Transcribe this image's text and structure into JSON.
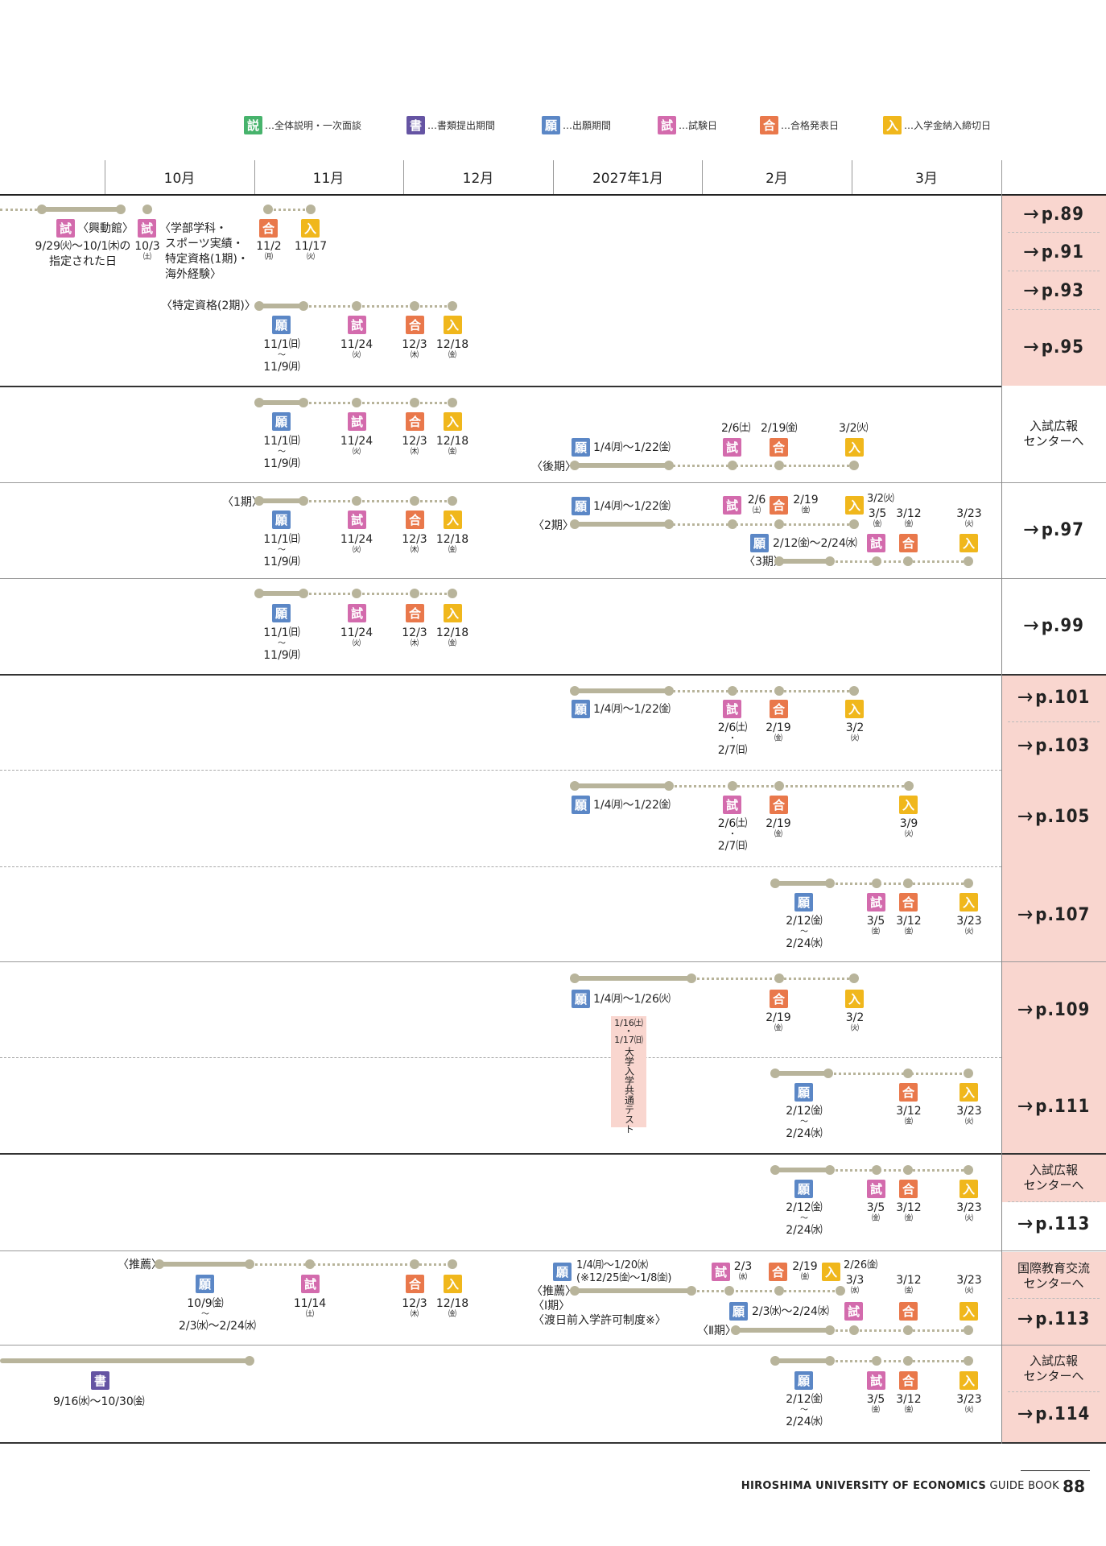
{
  "legend": [
    {
      "badge": "説",
      "text": "…全体説明・一次面談",
      "color": "#47b36c"
    },
    {
      "badge": "書",
      "text": "…書類提出期間",
      "color": "#6554a3"
    },
    {
      "badge": "願",
      "text": "…出願期間",
      "color": "#5b87c6"
    },
    {
      "badge": "試",
      "text": "…試験日",
      "color": "#d36bad"
    },
    {
      "badge": "合",
      "text": "…合格発表日",
      "color": "#e9784b"
    },
    {
      "badge": "入",
      "text": "…入学金納入締切日",
      "color": "#f0b71c"
    }
  ],
  "months": [
    "10月",
    "11月",
    "12月",
    "2027年1月",
    "2月",
    "3月"
  ],
  "badges": {
    "shi": "試",
    "gan": "願",
    "go": "合",
    "nyu": "入",
    "sho": "書"
  },
  "pages": {
    "p89": "p.89",
    "p91": "p.91",
    "p93": "p.93",
    "p95": "p.95",
    "p97": "p.97",
    "p99": "p.99",
    "p101": "p.101",
    "p103": "p.103",
    "p105": "p.105",
    "p107": "p.107",
    "p109": "p.109",
    "p111": "p.111",
    "p113a": "p.113",
    "p113b": "p.113",
    "p114": "p.114"
  },
  "centers": {
    "nyushi1": "入試広報\nセンターへ",
    "nyushi2": "入試広報\nセンターへ",
    "kokusai": "国際教育交流\nセンターへ",
    "nyushi3": "入試広報\nセンターへ"
  },
  "r1": {
    "koudoukan": "〈興動館〉",
    "d1": "9/29㈫〜10/1㈭の",
    "d1b": "指定された日",
    "d2": "10/3",
    "d2w": "㈯",
    "cat1": "〈学部学科・",
    "cat2": "スポーツ実績・",
    "cat3": "特定資格(1期)・",
    "cat4": "海外経験〉",
    "go": "11/2",
    "gow": "㈪",
    "nyu": "11/17",
    "nyuw": "㈫",
    "tokutei2": "〈特定資格(2期)〉"
  },
  "common_fall": {
    "gan1": "11/1㈰",
    "gan2": "〜",
    "gan3": "11/9㈪",
    "shi": "11/24",
    "shiw": "㈫",
    "go": "12/3",
    "gow": "㈭",
    "nyu": "12/18",
    "nyuw": "㈮"
  },
  "r2": {
    "shi": "2/6㈯",
    "go": "2/19㈮",
    "nyu": "3/2㈫",
    "gan": "1/4㈪〜1/22㈮",
    "kouki": "〈後期〉"
  },
  "r3": {
    "ki1": "〈1期〉",
    "gan": "1/4㈪〜1/22㈮",
    "ki2": "〈2期〉",
    "shi": "2/6",
    "shiw": "㈯",
    "go": "2/19",
    "gow": "㈮",
    "nyu": "3/2㈫",
    "shi3": "3/5",
    "shi3w": "㈮",
    "go3": "3/12",
    "go3w": "㈮",
    "nyu3": "3/23",
    "nyu3w": "㈫",
    "gan3": "2/12㈮〜2/24㈬",
    "ki3": "〈3期〉"
  },
  "r5": {
    "gan": "1/4㈪〜1/22㈮",
    "shi1": "2/6㈯",
    "shi2": "・",
    "shi3": "2/7㈰",
    "go": "2/19",
    "gow": "㈮",
    "nyu": "3/2",
    "nyuw": "㈫"
  },
  "r6": {
    "gan": "1/4㈪〜1/22㈮",
    "shi1": "2/6㈯",
    "shi2": "・",
    "shi3": "2/7㈰",
    "go": "2/19",
    "gow": "㈮",
    "nyu": "3/9",
    "nyuw": "㈫"
  },
  "late_feb": {
    "gan1": "2/12㈮",
    "gan2": "〜",
    "gan3": "2/24㈬",
    "shi": "3/5",
    "shiw": "㈮",
    "go": "3/12",
    "gow": "㈮",
    "nyu": "3/23",
    "nyuw": "㈫"
  },
  "r8": {
    "gan": "1/4㈪〜1/26㈫",
    "go": "2/19",
    "gow": "㈮",
    "nyu": "3/2",
    "nyuw": "㈫"
  },
  "center_test": {
    "d1": "1/16㈯",
    "d2": "・",
    "d3": "1/17㈰",
    "label": "大学入学共通テスト"
  },
  "r11": {
    "suisen": "〈推薦〉",
    "gan1": "10/9㈮",
    "gan2": "〜",
    "gan3": "2/3㈬〜2/24㈬",
    "shi": "11/14",
    "shiw": "㈯",
    "go": "12/3",
    "gow": "㈭",
    "nyu": "12/18",
    "nyuw": "㈮",
    "gan_b": "1/4㈪〜1/20㈬",
    "gan_b2": "(※12/25㈮〜1/8㈮)",
    "suisen2": "〈推薦〉",
    "ki1": "〈Ⅰ期〉",
    "tonichi": "〈渡日前入学許可制度※〉",
    "shi2": "2/3",
    "shi2w": "㈬",
    "go2": "2/19",
    "go2w": "㈮",
    "nyu2": "2/26㈮",
    "nyu2b": "3/3",
    "nyu2w": "㈬",
    "ki2": "〈Ⅱ期〉",
    "shi3": "3/12",
    "shi3w": "㈮",
    "nyu3": "3/23",
    "nyu3w": "㈫"
  },
  "r12": {
    "sho": "9/16㈬〜10/30㈮"
  },
  "footer": {
    "uni": "HIROSHIMA UNIVERSITY OF ECONOMICS",
    "gb": " GUIDE BOOK",
    "page": "88"
  }
}
